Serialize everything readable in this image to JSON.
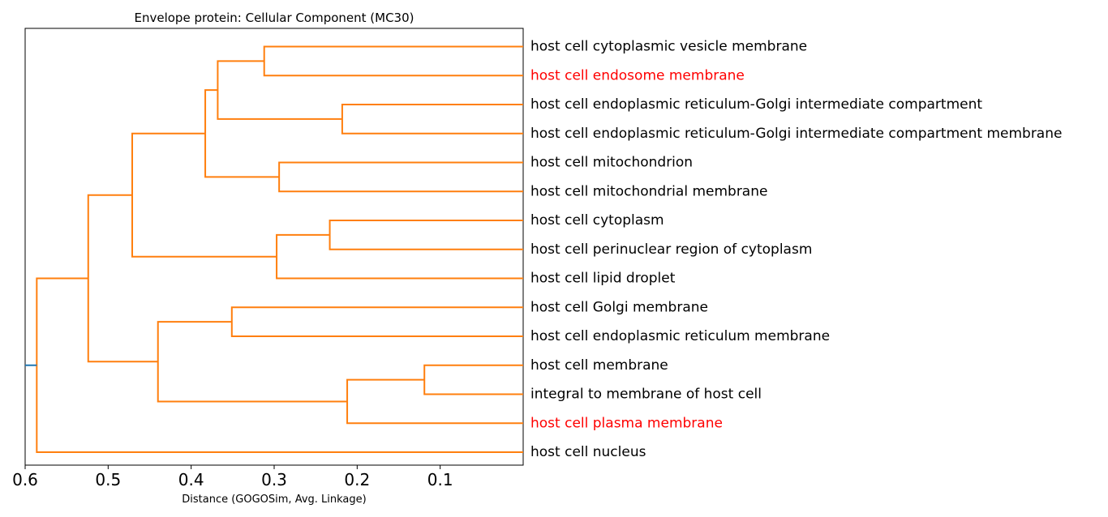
{
  "chart_data": {
    "type": "dendrogram",
    "title": "Envelope protein: Cellular Component (MC30)",
    "xlabel": "Distance (GOGOSim, Avg. Linkage)",
    "xlim": [
      0.6,
      0.0
    ],
    "xticks": [
      {
        "value": 0.6,
        "label": "0.6"
      },
      {
        "value": 0.5,
        "label": "0.5"
      },
      {
        "value": 0.4,
        "label": "0.4"
      },
      {
        "value": 0.3,
        "label": "0.3"
      },
      {
        "value": 0.2,
        "label": "0.2"
      },
      {
        "value": 0.1,
        "label": "0.1"
      }
    ],
    "orientation": "left",
    "link_color": "#ff7f0e",
    "root_stub_color": "#1f77b4",
    "highlight_color": "#ff0000",
    "leaves": [
      {
        "label": "host cell cytoplasmic vesicle membrane",
        "highlight": false
      },
      {
        "label": "host cell endosome membrane",
        "highlight": true
      },
      {
        "label": "host cell endoplasmic reticulum-Golgi intermediate compartment",
        "highlight": false
      },
      {
        "label": "host cell endoplasmic reticulum-Golgi intermediate compartment membrane",
        "highlight": false
      },
      {
        "label": "host cell mitochondrion",
        "highlight": false
      },
      {
        "label": "host cell mitochondrial membrane",
        "highlight": false
      },
      {
        "label": "host cell cytoplasm",
        "highlight": false
      },
      {
        "label": "host cell perinuclear region of cytoplasm",
        "highlight": false
      },
      {
        "label": "host cell lipid droplet",
        "highlight": false
      },
      {
        "label": "host cell Golgi membrane",
        "highlight": false
      },
      {
        "label": "host cell endoplasmic reticulum membrane",
        "highlight": false
      },
      {
        "label": "host cell membrane",
        "highlight": false
      },
      {
        "label": "integral to membrane of host cell",
        "highlight": false
      },
      {
        "label": "host cell plasma membrane",
        "highlight": true
      },
      {
        "label": "host cell nucleus",
        "highlight": false
      }
    ],
    "merges": [
      {
        "left": "L0",
        "right": "L1",
        "distance": 0.312
      },
      {
        "left": "L2",
        "right": "L3",
        "distance": 0.218
      },
      {
        "left": "M0",
        "right": "M1",
        "distance": 0.368
      },
      {
        "left": "L4",
        "right": "L5",
        "distance": 0.294
      },
      {
        "left": "M2",
        "right": "M3",
        "distance": 0.383
      },
      {
        "left": "L6",
        "right": "L7",
        "distance": 0.233
      },
      {
        "left": "M5",
        "right": "L8",
        "distance": 0.297
      },
      {
        "left": "M4",
        "right": "M6",
        "distance": 0.471
      },
      {
        "left": "L9",
        "right": "L10",
        "distance": 0.351
      },
      {
        "left": "L11",
        "right": "L12",
        "distance": 0.119
      },
      {
        "left": "M9",
        "right": "L13",
        "distance": 0.212
      },
      {
        "left": "M8",
        "right": "M10",
        "distance": 0.44
      },
      {
        "left": "M7",
        "right": "M11",
        "distance": 0.524
      },
      {
        "left": "M12",
        "right": "L14",
        "distance": 0.586
      }
    ]
  }
}
